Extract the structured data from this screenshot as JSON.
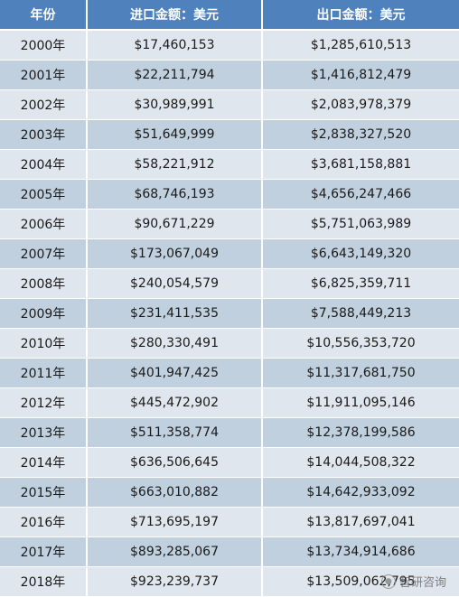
{
  "table": {
    "headers": [
      "年份",
      "进口金额：美元",
      "出口金额：美元"
    ],
    "rows": [
      [
        "2000年",
        "$17,460,153",
        "$1,285,610,513"
      ],
      [
        "2001年",
        "$22,211,794",
        "$1,416,812,479"
      ],
      [
        "2002年",
        "$30,989,991",
        "$2,083,978,379"
      ],
      [
        "2003年",
        "$51,649,999",
        "$2,838,327,520"
      ],
      [
        "2004年",
        "$58,221,912",
        "$3,681,158,881"
      ],
      [
        "2005年",
        "$68,746,193",
        "$4,656,247,466"
      ],
      [
        "2006年",
        "$90,671,229",
        "$5,751,063,989"
      ],
      [
        "2007年",
        "$173,067,049",
        "$6,643,149,320"
      ],
      [
        "2008年",
        "$240,054,579",
        "$6,825,359,711"
      ],
      [
        "2009年",
        "$231,411,535",
        "$7,588,449,213"
      ],
      [
        "2010年",
        "$280,330,491",
        "$10,556,353,720"
      ],
      [
        "2011年",
        "$401,947,425",
        "$11,317,681,750"
      ],
      [
        "2012年",
        "$445,472,902",
        "$11,911,095,146"
      ],
      [
        "2013年",
        "$511,358,774",
        "$12,378,199,586"
      ],
      [
        "2014年",
        "$636,506,645",
        "$14,044,508,322"
      ],
      [
        "2015年",
        "$663,010,882",
        "$14,642,933,092"
      ],
      [
        "2016年",
        "$713,695,197",
        "$13,817,697,041"
      ],
      [
        "2017年",
        "$893,285,067",
        "$13,734,914,686"
      ],
      [
        "2018年",
        "$923,239,737",
        "$13,509,062,795"
      ]
    ]
  },
  "watermark": {
    "text": "智研咨询",
    "icon": "wechat-icon"
  }
}
